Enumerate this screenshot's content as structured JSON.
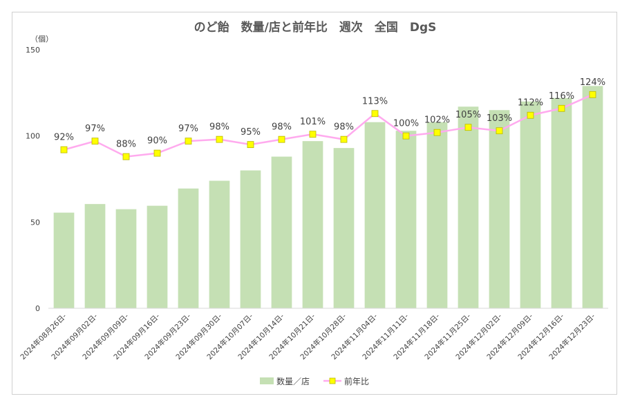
{
  "chart_data": {
    "type": "bar",
    "title": "のど飴　数量/店と前年比　週次　全国　DgS",
    "ylabel": "（個）",
    "ylim": [
      0,
      150
    ],
    "yticks": [
      0,
      50,
      100,
      150
    ],
    "categories": [
      "2024年08月26日-",
      "2024年09月02日-",
      "2024年09月09日-",
      "2024年09月16日-",
      "2024年09月23日-",
      "2024年09月30日-",
      "2024年10月07日-",
      "2024年10月14日-",
      "2024年10月21日-",
      "2024年10月28日-",
      "2024年11月04日-",
      "2024年11月11日-",
      "2024年11月18日-",
      "2024年11月25日-",
      "2024年12月02日-",
      "2024年12月09日-",
      "2024年12月16日-",
      "2024年12月23日-"
    ],
    "series": [
      {
        "name": "数量／店",
        "type": "bar",
        "color": "#c5e0b4",
        "values": [
          55.5,
          60.5,
          57.5,
          59.5,
          69.5,
          74,
          80,
          88,
          97,
          93,
          108,
          103,
          108,
          117,
          115,
          120,
          122,
          129
        ]
      },
      {
        "name": "前年比",
        "type": "line",
        "line_color": "#ffaaee",
        "marker_color": "#ffff00",
        "values": [
          92,
          97,
          88,
          90,
          97,
          98,
          95,
          98,
          101,
          98,
          113,
          100,
          102,
          105,
          103,
          112,
          116,
          124
        ],
        "labels": [
          "92%",
          "97%",
          "88%",
          "90%",
          "97%",
          "98%",
          "95%",
          "98%",
          "101%",
          "98%",
          "113%",
          "100%",
          "102%",
          "105%",
          "103%",
          "112%",
          "116%",
          "124%"
        ]
      }
    ],
    "grid": false,
    "legend": "bottom"
  }
}
